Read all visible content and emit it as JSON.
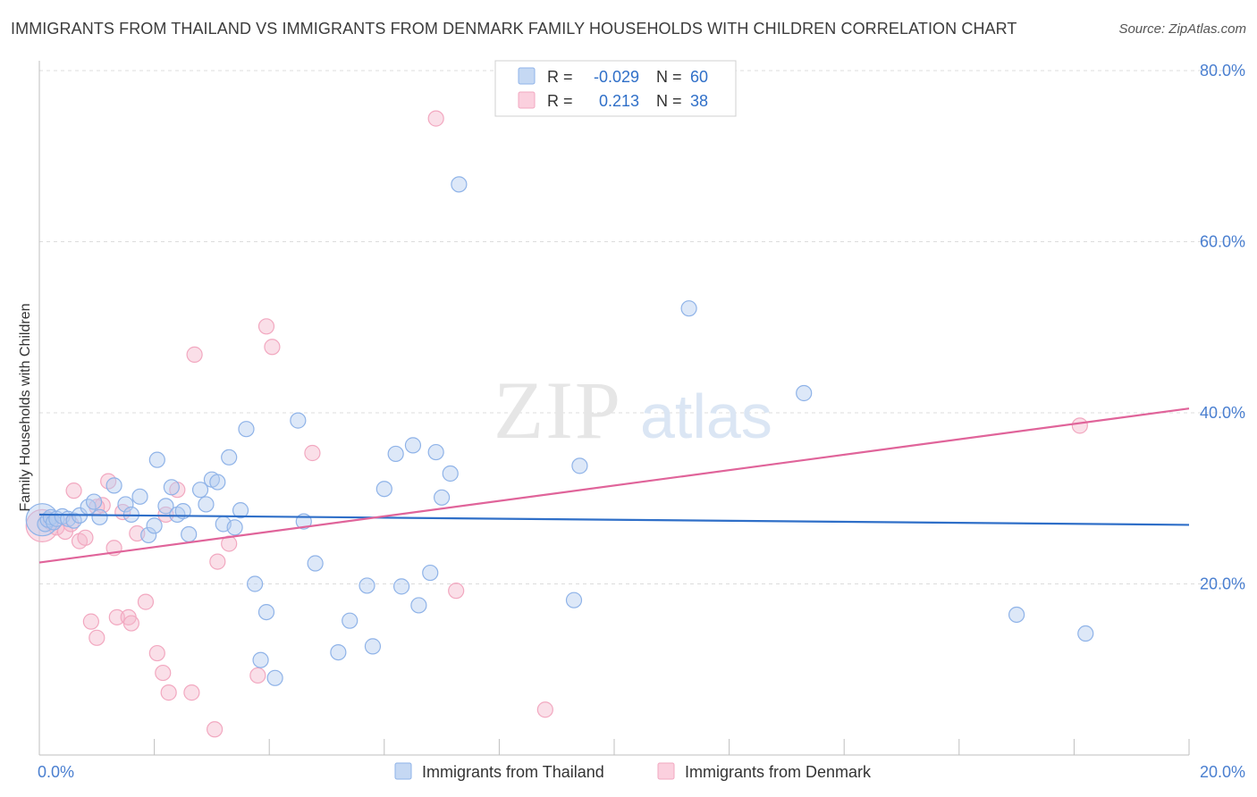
{
  "title": "IMMIGRANTS FROM THAILAND VS IMMIGRANTS FROM DENMARK FAMILY HOUSEHOLDS WITH CHILDREN CORRELATION CHART",
  "source": "Source: ZipAtlas.com",
  "watermark": {
    "zip": "ZIP",
    "atlas": "atlas"
  },
  "colors": {
    "blue": "#8fb3e8",
    "blue_line": "#2f6fc8",
    "pink": "#f2a8c0",
    "pink_line": "#e0649a",
    "tick_text": "#4a7fd0",
    "grid": "#dcdcdc"
  },
  "legend": {
    "rows": [
      {
        "r_label": "R =",
        "r_value": "-0.029",
        "n_label": "N =",
        "n_value": "60"
      },
      {
        "r_label": "R =",
        "r_value": "0.213",
        "n_label": "N =",
        "n_value": "38"
      }
    ]
  },
  "chart_data": {
    "type": "scatter",
    "title": "IMMIGRANTS FROM THAILAND VS IMMIGRANTS FROM DENMARK FAMILY HOUSEHOLDS WITH CHILDREN CORRELATION CHART",
    "xlabel": "",
    "ylabel": "Family Households with Children",
    "xlim": [
      0,
      20
    ],
    "ylim": [
      0,
      80
    ],
    "x_tick_labels": [
      {
        "value": 0,
        "label": "0.0%"
      },
      {
        "value": 20,
        "label": "20.0%"
      }
    ],
    "y_tick_labels": [
      {
        "value": 20,
        "label": "20.0%"
      },
      {
        "value": 40,
        "label": "40.0%"
      },
      {
        "value": 60,
        "label": "60.0%"
      },
      {
        "value": 80,
        "label": "80.0%"
      }
    ],
    "series": [
      {
        "name": "Immigrants from Thailand",
        "color": "blue",
        "R": -0.029,
        "N": 60,
        "trend": {
          "x0": 0,
          "y0": 28.1,
          "x1": 20,
          "y1": 26.9
        },
        "points": [
          [
            0.05,
            27.5,
            3
          ],
          [
            0.1,
            27.0,
            1
          ],
          [
            0.15,
            27.5,
            1
          ],
          [
            0.2,
            27.8,
            1
          ],
          [
            0.25,
            27.2,
            1
          ],
          [
            0.3,
            27.6,
            1
          ],
          [
            0.4,
            27.9,
            1
          ],
          [
            0.5,
            27.6,
            1
          ],
          [
            0.6,
            27.4,
            1
          ],
          [
            0.7,
            28.0,
            1
          ],
          [
            0.85,
            29.0,
            1
          ],
          [
            0.95,
            29.6,
            1
          ],
          [
            1.05,
            27.8,
            1
          ],
          [
            1.3,
            31.5,
            1
          ],
          [
            1.5,
            29.3,
            1
          ],
          [
            1.6,
            28.1,
            1
          ],
          [
            1.75,
            30.2,
            1
          ],
          [
            1.9,
            25.7,
            1
          ],
          [
            2.0,
            26.8,
            1
          ],
          [
            2.05,
            34.5,
            1
          ],
          [
            2.2,
            29.1,
            1
          ],
          [
            2.3,
            31.3,
            1
          ],
          [
            2.4,
            28.1,
            1
          ],
          [
            2.5,
            28.5,
            1
          ],
          [
            2.6,
            25.8,
            1
          ],
          [
            2.8,
            31.0,
            1
          ],
          [
            2.9,
            29.3,
            1
          ],
          [
            3.0,
            32.2,
            1
          ],
          [
            3.1,
            31.9,
            1
          ],
          [
            3.2,
            27.0,
            1
          ],
          [
            3.3,
            34.8,
            1
          ],
          [
            3.4,
            26.6,
            1
          ],
          [
            3.5,
            28.6,
            1
          ],
          [
            3.6,
            38.1,
            1
          ],
          [
            3.75,
            20.0,
            1
          ],
          [
            3.95,
            16.7,
            1
          ],
          [
            3.85,
            11.1,
            1
          ],
          [
            4.1,
            9.0,
            1
          ],
          [
            4.5,
            39.1,
            1
          ],
          [
            4.6,
            27.3,
            1
          ],
          [
            4.8,
            22.4,
            1
          ],
          [
            5.2,
            12.0,
            1
          ],
          [
            5.4,
            15.7,
            1
          ],
          [
            5.7,
            19.8,
            1
          ],
          [
            5.8,
            12.7,
            1
          ],
          [
            6.0,
            31.1,
            1
          ],
          [
            6.2,
            35.2,
            1
          ],
          [
            6.3,
            19.7,
            1
          ],
          [
            6.5,
            36.2,
            1
          ],
          [
            6.6,
            17.5,
            1
          ],
          [
            6.8,
            21.3,
            1
          ],
          [
            6.9,
            35.4,
            1
          ],
          [
            7.0,
            30.1,
            1
          ],
          [
            7.15,
            32.9,
            1
          ],
          [
            7.3,
            66.7,
            1
          ],
          [
            9.3,
            18.1,
            1
          ],
          [
            9.4,
            33.8,
            1
          ],
          [
            11.3,
            52.2,
            1
          ],
          [
            13.3,
            42.3,
            1
          ],
          [
            17.0,
            16.4,
            1
          ],
          [
            18.2,
            14.2,
            1
          ]
        ]
      },
      {
        "name": "Immigrants from Denmark",
        "color": "pink",
        "R": 0.213,
        "N": 38,
        "trend": {
          "x0": 0,
          "y0": 22.5,
          "x1": 20,
          "y1": 40.5
        },
        "points": [
          [
            0.05,
            26.8,
            3
          ],
          [
            0.3,
            26.6,
            1
          ],
          [
            0.45,
            26.1,
            1
          ],
          [
            0.55,
            27.0,
            1
          ],
          [
            0.6,
            30.9,
            1
          ],
          [
            0.7,
            25.0,
            1
          ],
          [
            0.8,
            25.4,
            1
          ],
          [
            0.9,
            15.6,
            1
          ],
          [
            1.0,
            13.7,
            1
          ],
          [
            1.1,
            29.2,
            1
          ],
          [
            1.2,
            32.0,
            1
          ],
          [
            1.3,
            24.2,
            1
          ],
          [
            1.35,
            16.1,
            1
          ],
          [
            1.45,
            28.4,
            1
          ],
          [
            1.55,
            16.1,
            1
          ],
          [
            1.6,
            15.4,
            1
          ],
          [
            1.7,
            25.9,
            1
          ],
          [
            1.85,
            17.9,
            1
          ],
          [
            2.05,
            11.9,
            1
          ],
          [
            2.15,
            9.6,
            1
          ],
          [
            2.25,
            7.3,
            1
          ],
          [
            2.4,
            31.0,
            1
          ],
          [
            2.7,
            46.8,
            1
          ],
          [
            2.65,
            7.3,
            1
          ],
          [
            3.05,
            3.0,
            1
          ],
          [
            3.1,
            22.6,
            1
          ],
          [
            3.3,
            24.7,
            1
          ],
          [
            3.8,
            9.3,
            1
          ],
          [
            3.95,
            50.1,
            1
          ],
          [
            4.05,
            47.7,
            1
          ],
          [
            4.75,
            35.3,
            1
          ],
          [
            6.9,
            74.4,
            1
          ],
          [
            7.25,
            19.2,
            1
          ],
          [
            8.8,
            5.3,
            1
          ],
          [
            18.1,
            38.5,
            1
          ],
          [
            2.2,
            28.1,
            1
          ],
          [
            0.2,
            27.2,
            1
          ],
          [
            1.0,
            29.0,
            1
          ]
        ]
      }
    ],
    "legend_labels": [
      "Immigrants from Thailand",
      "Immigrants from Denmark"
    ]
  }
}
